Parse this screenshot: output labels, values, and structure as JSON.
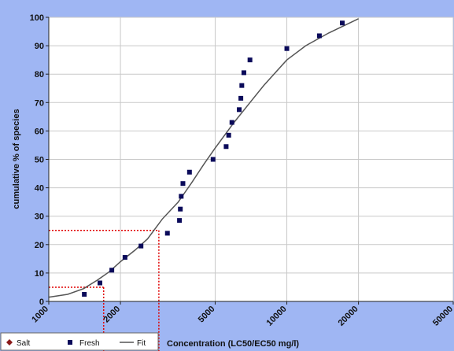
{
  "chart_data": {
    "type": "scatter",
    "title": "",
    "xlabel": "Concentration (LC50/EC50 mg/l)",
    "ylabel": "cumulative % of species",
    "xscale": "log",
    "xlim": [
      1000,
      50000
    ],
    "ylim": [
      0,
      100
    ],
    "grid": true,
    "legend_position": "bottom-left",
    "x_ticks": [
      1000,
      2000,
      5000,
      10000,
      20000,
      50000
    ],
    "x_tick_labels": [
      "1000",
      "2000",
      "5000",
      "10000",
      "20000",
      "50000"
    ],
    "y_ticks": [
      0,
      10,
      20,
      30,
      40,
      50,
      60,
      70,
      80,
      90,
      100
    ],
    "y_tick_labels": [
      "0",
      "10",
      "20",
      "30",
      "40",
      "50",
      "60",
      "70",
      "80",
      "90",
      "100"
    ],
    "legend": [
      "Salt",
      "Fresh",
      "Fit"
    ],
    "series": [
      {
        "name": "Salt",
        "marker": "diamond",
        "color": "#8b1a1a",
        "points": []
      },
      {
        "name": "Fresh",
        "marker": "square",
        "color": "#0a0a5a",
        "points": [
          [
            1410,
            2.5
          ],
          [
            1640,
            6.5
          ],
          [
            1840,
            11
          ],
          [
            2090,
            15.5
          ],
          [
            2440,
            19.5
          ],
          [
            3150,
            24
          ],
          [
            3540,
            28.5
          ],
          [
            3570,
            32.5
          ],
          [
            3600,
            37
          ],
          [
            3660,
            41.5
          ],
          [
            3900,
            45.5
          ],
          [
            4900,
            50
          ],
          [
            5560,
            54.5
          ],
          [
            5700,
            58.5
          ],
          [
            5880,
            63
          ],
          [
            6310,
            67.5
          ],
          [
            6410,
            71.5
          ],
          [
            6470,
            76
          ],
          [
            6600,
            80.5
          ],
          [
            7000,
            85
          ],
          [
            10000,
            89
          ],
          [
            13700,
            93.5
          ],
          [
            17100,
            98
          ]
        ]
      },
      {
        "name": "Fit",
        "type": "line",
        "color": "#555555",
        "points": [
          [
            1000,
            1.5
          ],
          [
            1200,
            2.5
          ],
          [
            1400,
            4.5
          ],
          [
            1600,
            7.5
          ],
          [
            1800,
            10.5
          ],
          [
            2000,
            14
          ],
          [
            2300,
            18
          ],
          [
            2600,
            22
          ],
          [
            3000,
            29
          ],
          [
            3500,
            35
          ],
          [
            4000,
            42
          ],
          [
            4500,
            48.5
          ],
          [
            5000,
            54
          ],
          [
            6000,
            63
          ],
          [
            7000,
            70
          ],
          [
            8000,
            76
          ],
          [
            10000,
            85
          ],
          [
            12000,
            90
          ],
          [
            15000,
            94.5
          ],
          [
            20000,
            99.5
          ]
        ]
      }
    ],
    "reference_lines": [
      {
        "y": 5,
        "x": 1700,
        "color": "#e00000"
      },
      {
        "y": 25,
        "x": 2900,
        "color": "#e00000"
      }
    ]
  }
}
